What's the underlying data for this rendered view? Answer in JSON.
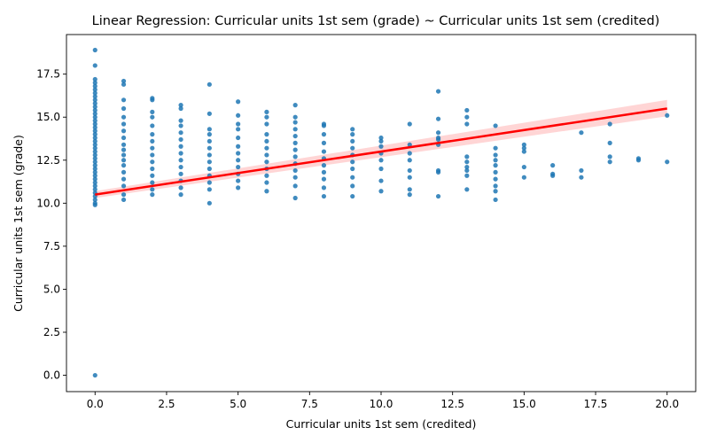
{
  "chart_data": {
    "type": "scatter",
    "title": "Linear Regression: Curricular units 1st sem (grade) ~ Curricular units 1st sem (credited)",
    "xlabel": "Curricular units 1st sem (credited)",
    "ylabel": "Curricular units 1st sem (grade)",
    "xlim": [
      -1,
      21
    ],
    "ylim": [
      -0.95,
      19.8
    ],
    "x_ticks": [
      0.0,
      2.5,
      5.0,
      7.5,
      10.0,
      12.5,
      15.0,
      17.5,
      20.0
    ],
    "x_tick_labels": [
      "0.0",
      "2.5",
      "5.0",
      "7.5",
      "10.0",
      "12.5",
      "15.0",
      "17.5",
      "20.0"
    ],
    "y_ticks": [
      0.0,
      2.5,
      5.0,
      7.5,
      10.0,
      12.5,
      15.0,
      17.5
    ],
    "y_tick_labels": [
      "0.0",
      "2.5",
      "5.0",
      "7.5",
      "10.0",
      "12.5",
      "15.0",
      "17.5"
    ],
    "grid": false,
    "points_color": "#1f77b4",
    "line_color": "#ff0000",
    "band_color": "#ffb3b3",
    "regression": {
      "x": [
        0,
        20
      ],
      "y": [
        10.5,
        15.5
      ]
    },
    "confidence_band": {
      "x": [
        0,
        20
      ],
      "lower": [
        10.3,
        15.05
      ],
      "upper": [
        10.7,
        16.0
      ]
    },
    "series": [
      {
        "x": 0,
        "y": [
          0,
          9.9,
          10.0,
          10.2,
          10.4,
          10.6,
          10.8,
          11.0,
          11.2,
          11.4,
          11.6,
          11.8,
          12.0,
          12.2,
          12.4,
          12.6,
          12.8,
          13.0,
          13.2,
          13.4,
          13.6,
          13.8,
          14.0,
          14.2,
          14.4,
          14.6,
          14.8,
          15.0,
          15.2,
          15.4,
          15.6,
          15.8,
          16.0,
          16.2,
          16.4,
          16.6,
          16.8,
          17.0,
          17.2,
          18.0,
          18.9
        ]
      },
      {
        "x": 1,
        "y": [
          10.2,
          10.5,
          11.0,
          11.4,
          11.8,
          12.2,
          12.5,
          12.8,
          13.1,
          13.4,
          13.8,
          14.2,
          14.6,
          15.0,
          15.5,
          16.0,
          16.9,
          17.1
        ]
      },
      {
        "x": 2,
        "y": [
          10.5,
          10.8,
          11.2,
          11.6,
          12.0,
          12.4,
          12.8,
          13.2,
          13.6,
          14.0,
          14.5,
          15.0,
          15.3,
          16.0,
          16.1
        ]
      },
      {
        "x": 3,
        "y": [
          10.5,
          10.9,
          11.3,
          11.7,
          12.1,
          12.5,
          12.9,
          13.3,
          13.7,
          14.1,
          14.5,
          14.8,
          15.5,
          15.7
        ]
      },
      {
        "x": 4,
        "y": [
          10.0,
          10.8,
          11.2,
          11.6,
          12.0,
          12.4,
          12.8,
          13.2,
          13.6,
          14.0,
          14.3,
          15.2,
          16.9
        ]
      },
      {
        "x": 5,
        "y": [
          10.9,
          11.3,
          11.7,
          12.1,
          12.5,
          12.9,
          13.3,
          13.8,
          14.3,
          14.6,
          15.1,
          15.9
        ]
      },
      {
        "x": 6,
        "y": [
          10.7,
          11.2,
          11.6,
          12.0,
          12.4,
          12.8,
          13.2,
          13.6,
          14.0,
          14.6,
          15.0,
          15.3
        ]
      },
      {
        "x": 7,
        "y": [
          10.3,
          11.0,
          11.5,
          11.9,
          12.3,
          12.7,
          13.1,
          13.5,
          13.9,
          14.3,
          14.7,
          15.0,
          15.7
        ]
      },
      {
        "x": 8,
        "y": [
          10.4,
          10.9,
          11.4,
          11.8,
          12.2,
          12.6,
          13.0,
          13.5,
          14.0,
          14.5,
          14.6
        ]
      },
      {
        "x": 9,
        "y": [
          10.4,
          11.0,
          11.5,
          12.0,
          12.4,
          12.8,
          13.2,
          13.6,
          14.0,
          14.3
        ]
      },
      {
        "x": 10,
        "y": [
          10.7,
          11.3,
          12.0,
          12.5,
          12.9,
          13.3,
          13.6,
          13.8
        ]
      },
      {
        "x": 11,
        "y": [
          10.5,
          10.8,
          11.5,
          11.9,
          12.5,
          12.9,
          13.4,
          14.6
        ]
      },
      {
        "x": 12,
        "y": [
          10.4,
          11.8,
          11.9,
          13.4,
          13.7,
          13.8,
          14.1,
          14.9,
          16.5
        ]
      },
      {
        "x": 13,
        "y": [
          10.8,
          11.6,
          11.9,
          12.1,
          12.4,
          12.7,
          14.6,
          15.0,
          15.4
        ]
      },
      {
        "x": 14,
        "y": [
          10.2,
          10.7,
          11.0,
          11.4,
          11.8,
          12.2,
          12.5,
          12.8,
          13.2,
          14.5
        ]
      },
      {
        "x": 15,
        "y": [
          11.5,
          12.1,
          13.0,
          13.2,
          13.4
        ]
      },
      {
        "x": 16,
        "y": [
          11.6,
          11.7,
          12.2
        ]
      },
      {
        "x": 17,
        "y": [
          11.5,
          11.9,
          14.1
        ]
      },
      {
        "x": 18,
        "y": [
          12.4,
          12.7,
          13.5,
          14.6
        ]
      },
      {
        "x": 19,
        "y": [
          12.5,
          12.6
        ]
      },
      {
        "x": 20,
        "y": [
          12.4,
          15.1
        ]
      }
    ]
  }
}
